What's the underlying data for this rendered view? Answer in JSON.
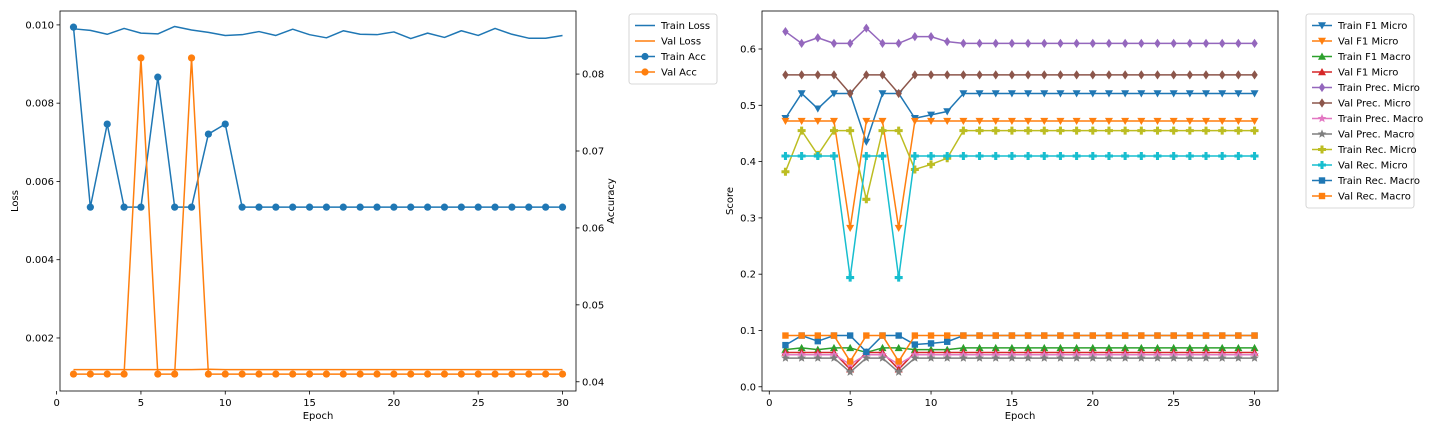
{
  "chart_data": [
    {
      "type": "line",
      "xlabel": "Epoch",
      "ylabel": "Loss",
      "ylabel_right": "Accuracy",
      "x": [
        1,
        2,
        3,
        4,
        5,
        6,
        7,
        8,
        9,
        10,
        11,
        12,
        13,
        14,
        15,
        16,
        17,
        18,
        19,
        20,
        21,
        22,
        23,
        24,
        25,
        26,
        27,
        28,
        29,
        30
      ],
      "xlim": [
        0.2,
        30.8
      ],
      "ylim": [
        0.000645,
        0.010355
      ],
      "ylim_right": [
        0.0388,
        0.0882
      ],
      "xticks": [
        "0",
        "5",
        "10",
        "15",
        "20",
        "25",
        "30"
      ],
      "xtick_values": [
        0,
        5,
        10,
        15,
        20,
        25,
        30
      ],
      "yticks": [
        "0.002",
        "0.004",
        "0.006",
        "0.008",
        "0.010"
      ],
      "ytick_values": [
        0.002,
        0.004,
        0.006,
        0.008,
        0.01
      ],
      "yticks_right": [
        "0.04",
        "0.05",
        "0.06",
        "0.07",
        "0.08"
      ],
      "ytick_values_right": [
        0.04,
        0.05,
        0.06,
        0.07,
        0.08
      ],
      "legend_position": "outside upper right",
      "series": [
        {
          "name": "Train Loss",
          "axis": "left",
          "marker": "none",
          "color": "#1f77b4",
          "values": [
            0.0099,
            0.00986,
            0.00976,
            0.00991,
            0.00979,
            0.00977,
            0.00996,
            0.00987,
            0.00981,
            0.00973,
            0.00975,
            0.00983,
            0.00973,
            0.00989,
            0.00975,
            0.00967,
            0.00985,
            0.00976,
            0.00975,
            0.00982,
            0.00965,
            0.00979,
            0.00968,
            0.00985,
            0.00973,
            0.00991,
            0.00976,
            0.00966,
            0.00966,
            0.00973
          ]
        },
        {
          "name": "Val Loss",
          "axis": "left",
          "marker": "none",
          "color": "#ff7f0e",
          "values": [
            0.00119,
            0.00119,
            0.00119,
            0.00119,
            0.00119,
            0.00119,
            0.00119,
            0.00119,
            0.0012,
            0.00119,
            0.00119,
            0.00119,
            0.00119,
            0.00119,
            0.00119,
            0.00119,
            0.00119,
            0.00119,
            0.00119,
            0.00119,
            0.00119,
            0.00119,
            0.00119,
            0.00119,
            0.00119,
            0.00119,
            0.00119,
            0.00119,
            0.00119,
            0.00119
          ]
        },
        {
          "name": "Train Acc",
          "axis": "right",
          "marker": "circle",
          "color": "#1f77b4",
          "values": [
            0.0861,
            0.0627,
            0.0735,
            0.0627,
            0.0627,
            0.0796,
            0.0627,
            0.0627,
            0.0722,
            0.0735,
            0.0627,
            0.0627,
            0.0627,
            0.0627,
            0.0627,
            0.0627,
            0.0627,
            0.0627,
            0.0627,
            0.0627,
            0.0627,
            0.0627,
            0.0627,
            0.0627,
            0.0627,
            0.0627,
            0.0627,
            0.0627,
            0.0627,
            0.0627
          ]
        },
        {
          "name": "Val Acc",
          "axis": "right",
          "marker": "circle",
          "color": "#ff7f0e",
          "values": [
            0.041,
            0.041,
            0.041,
            0.041,
            0.0821,
            0.041,
            0.041,
            0.0821,
            0.041,
            0.041,
            0.041,
            0.041,
            0.041,
            0.041,
            0.041,
            0.041,
            0.041,
            0.041,
            0.041,
            0.041,
            0.041,
            0.041,
            0.041,
            0.041,
            0.041,
            0.041,
            0.041,
            0.041,
            0.041,
            0.041
          ]
        }
      ]
    },
    {
      "type": "line",
      "xlabel": "Epoch",
      "ylabel": "Score",
      "x": [
        1,
        2,
        3,
        4,
        5,
        6,
        7,
        8,
        9,
        10,
        11,
        12,
        13,
        14,
        15,
        16,
        17,
        18,
        19,
        20,
        21,
        22,
        23,
        24,
        25,
        26,
        27,
        28,
        29,
        30
      ],
      "xlim": [
        -0.45,
        31.45
      ],
      "ylim": [
        -0.0075,
        0.6675
      ],
      "xticks": [
        "0",
        "5",
        "10",
        "15",
        "20",
        "25",
        "30"
      ],
      "xtick_values": [
        0,
        5,
        10,
        15,
        20,
        25,
        30
      ],
      "yticks": [
        "0.0",
        "0.1",
        "0.2",
        "0.3",
        "0.4",
        "0.5",
        "0.6"
      ],
      "ytick_values": [
        0.0,
        0.1,
        0.2,
        0.3,
        0.4,
        0.5,
        0.6
      ],
      "legend_position": "outside upper right",
      "series": [
        {
          "name": "Train F1 Micro",
          "marker": "triangle_down",
          "color": "#1f77b4",
          "values": [
            0.477,
            0.521,
            0.494,
            0.521,
            0.521,
            0.435,
            0.521,
            0.521,
            0.477,
            0.483,
            0.489,
            0.521,
            0.521,
            0.521,
            0.521,
            0.521,
            0.521,
            0.521,
            0.521,
            0.521,
            0.521,
            0.521,
            0.521,
            0.521,
            0.521,
            0.521,
            0.521,
            0.521,
            0.521,
            0.521
          ]
        },
        {
          "name": "Val F1 Micro",
          "marker": "triangle_down",
          "color": "#ff7f0e",
          "values": [
            0.472,
            0.472,
            0.472,
            0.472,
            0.282,
            0.472,
            0.472,
            0.282,
            0.472,
            0.472,
            0.472,
            0.472,
            0.472,
            0.472,
            0.472,
            0.472,
            0.472,
            0.472,
            0.472,
            0.472,
            0.472,
            0.472,
            0.472,
            0.472,
            0.472,
            0.472,
            0.472,
            0.472,
            0.472,
            0.472
          ]
        },
        {
          "name": "Train F1 Macro",
          "marker": "triangle_up",
          "color": "#2ca02c",
          "values": [
            0.066,
            0.069,
            0.066,
            0.069,
            0.069,
            0.061,
            0.069,
            0.069,
            0.066,
            0.066,
            0.066,
            0.069,
            0.069,
            0.069,
            0.069,
            0.069,
            0.069,
            0.069,
            0.069,
            0.069,
            0.069,
            0.069,
            0.069,
            0.069,
            0.069,
            0.069,
            0.069,
            0.069,
            0.069,
            0.069
          ]
        },
        {
          "name": "Val F1 Micro",
          "marker": "triangle_up",
          "color": "#d62728",
          "values": [
            0.061,
            0.061,
            0.061,
            0.061,
            0.031,
            0.061,
            0.061,
            0.031,
            0.061,
            0.061,
            0.061,
            0.061,
            0.061,
            0.061,
            0.061,
            0.061,
            0.061,
            0.061,
            0.061,
            0.061,
            0.061,
            0.061,
            0.061,
            0.061,
            0.061,
            0.061,
            0.061,
            0.061,
            0.061,
            0.061
          ]
        },
        {
          "name": "Train Prec. Micro",
          "marker": "diamond",
          "color": "#9467bd",
          "values": [
            0.631,
            0.61,
            0.62,
            0.61,
            0.61,
            0.637,
            0.61,
            0.61,
            0.622,
            0.622,
            0.613,
            0.61,
            0.61,
            0.61,
            0.61,
            0.61,
            0.61,
            0.61,
            0.61,
            0.61,
            0.61,
            0.61,
            0.61,
            0.61,
            0.61,
            0.61,
            0.61,
            0.61,
            0.61,
            0.61
          ]
        },
        {
          "name": "Val Prec. Micro",
          "marker": "diamond",
          "color": "#8c564b",
          "values": [
            0.554,
            0.554,
            0.554,
            0.554,
            0.521,
            0.554,
            0.554,
            0.521,
            0.554,
            0.554,
            0.554,
            0.554,
            0.554,
            0.554,
            0.554,
            0.554,
            0.554,
            0.554,
            0.554,
            0.554,
            0.554,
            0.554,
            0.554,
            0.554,
            0.554,
            0.554,
            0.554,
            0.554,
            0.554,
            0.554
          ]
        },
        {
          "name": "Train Prec. Macro",
          "marker": "star",
          "color": "#e377c2",
          "values": [
            0.057,
            0.057,
            0.057,
            0.057,
            0.04,
            0.057,
            0.057,
            0.04,
            0.057,
            0.057,
            0.057,
            0.057,
            0.057,
            0.057,
            0.057,
            0.057,
            0.057,
            0.057,
            0.057,
            0.057,
            0.057,
            0.057,
            0.057,
            0.057,
            0.057,
            0.057,
            0.057,
            0.057,
            0.057,
            0.057
          ]
        },
        {
          "name": "Val Prec. Macro",
          "marker": "star",
          "color": "#7f7f7f",
          "values": [
            0.051,
            0.051,
            0.051,
            0.051,
            0.026,
            0.051,
            0.051,
            0.026,
            0.051,
            0.051,
            0.051,
            0.051,
            0.051,
            0.051,
            0.051,
            0.051,
            0.051,
            0.051,
            0.051,
            0.051,
            0.051,
            0.051,
            0.051,
            0.051,
            0.051,
            0.051,
            0.051,
            0.051,
            0.051,
            0.051
          ]
        },
        {
          "name": "Train Rec. Micro",
          "marker": "plus",
          "color": "#bcbd22",
          "values": [
            0.382,
            0.455,
            0.412,
            0.455,
            0.455,
            0.333,
            0.455,
            0.455,
            0.386,
            0.395,
            0.406,
            0.455,
            0.455,
            0.455,
            0.455,
            0.455,
            0.455,
            0.455,
            0.455,
            0.455,
            0.455,
            0.455,
            0.455,
            0.455,
            0.455,
            0.455,
            0.455,
            0.455,
            0.455,
            0.455
          ]
        },
        {
          "name": "Val Rec. Micro",
          "marker": "plus",
          "color": "#17becf",
          "values": [
            0.41,
            0.41,
            0.41,
            0.41,
            0.194,
            0.41,
            0.41,
            0.194,
            0.41,
            0.41,
            0.41,
            0.41,
            0.41,
            0.41,
            0.41,
            0.41,
            0.41,
            0.41,
            0.41,
            0.41,
            0.41,
            0.41,
            0.41,
            0.41,
            0.41,
            0.41,
            0.41,
            0.41,
            0.41,
            0.41
          ]
        },
        {
          "name": "Train Rec. Macro",
          "marker": "square",
          "color": "#1f77b4",
          "values": [
            0.074,
            0.091,
            0.081,
            0.091,
            0.091,
            0.062,
            0.091,
            0.091,
            0.075,
            0.077,
            0.08,
            0.091,
            0.091,
            0.091,
            0.091,
            0.091,
            0.091,
            0.091,
            0.091,
            0.091,
            0.091,
            0.091,
            0.091,
            0.091,
            0.091,
            0.091,
            0.091,
            0.091,
            0.091,
            0.091
          ]
        },
        {
          "name": "Val Rec. Macro",
          "marker": "square",
          "color": "#ff7f0e",
          "values": [
            0.091,
            0.091,
            0.091,
            0.091,
            0.045,
            0.091,
            0.091,
            0.045,
            0.091,
            0.091,
            0.091,
            0.091,
            0.091,
            0.091,
            0.091,
            0.091,
            0.091,
            0.091,
            0.091,
            0.091,
            0.091,
            0.091,
            0.091,
            0.091,
            0.091,
            0.091,
            0.091,
            0.091,
            0.091,
            0.091
          ]
        }
      ]
    }
  ]
}
